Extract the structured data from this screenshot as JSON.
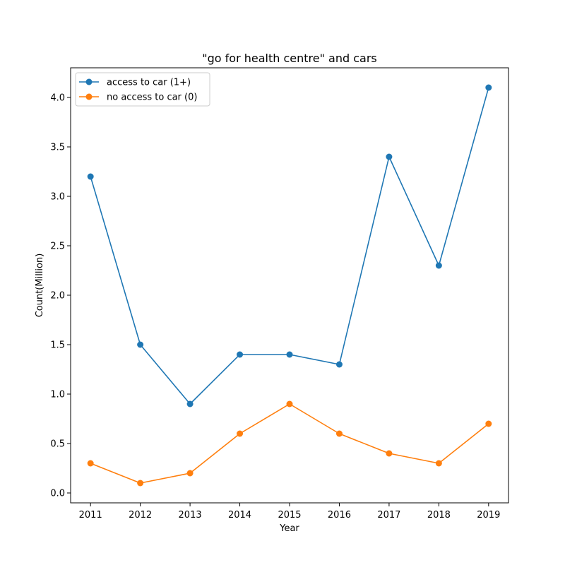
{
  "chart_data": {
    "type": "line",
    "title": "\"go for health centre\" and cars",
    "xlabel": "Year",
    "ylabel": "Count(Million)",
    "x": [
      2011,
      2012,
      2013,
      2014,
      2015,
      2016,
      2017,
      2018,
      2019
    ],
    "x_tick_labels": [
      "2011",
      "2012",
      "2013",
      "2014",
      "2015",
      "2016",
      "2017",
      "2018",
      "2019"
    ],
    "y_ticks": [
      0.0,
      0.5,
      1.0,
      1.5,
      2.0,
      2.5,
      3.0,
      3.5,
      4.0
    ],
    "y_tick_labels": [
      "0.0",
      "0.5",
      "1.0",
      "1.5",
      "2.0",
      "2.5",
      "3.0",
      "3.5",
      "4.0"
    ],
    "xlim": [
      2010.6,
      2019.4
    ],
    "ylim": [
      -0.1,
      4.3
    ],
    "grid": false,
    "legend_position": "top-left",
    "series": [
      {
        "name": "access to car (1+)",
        "color": "#1f77b4",
        "marker": "circle",
        "values": [
          3.2,
          1.5,
          0.9,
          1.4,
          1.4,
          1.3,
          3.4,
          2.3,
          4.1
        ]
      },
      {
        "name": "no access to car (0)",
        "color": "#ff7f0e",
        "marker": "circle",
        "values": [
          0.3,
          0.1,
          0.2,
          0.6,
          0.9,
          0.6,
          0.4,
          0.3,
          0.7
        ]
      }
    ]
  }
}
